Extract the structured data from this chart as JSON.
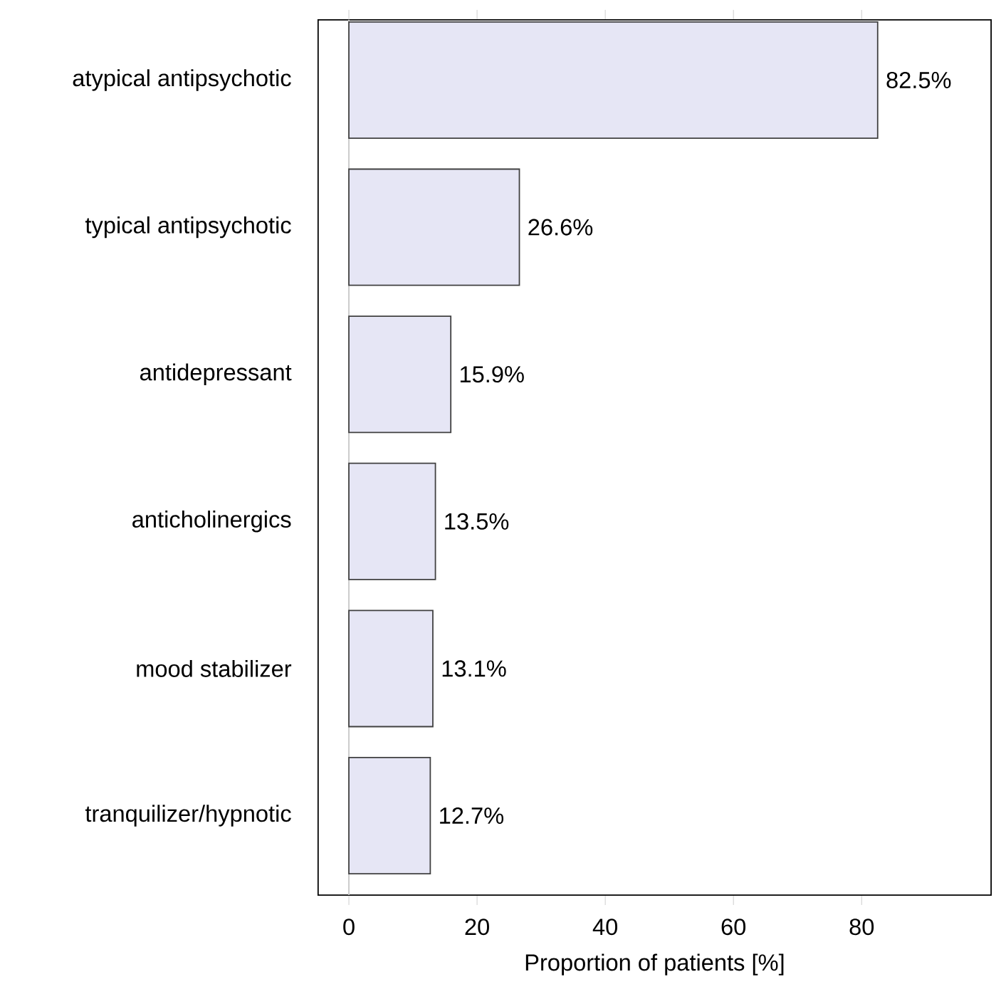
{
  "chart_data": {
    "type": "bar",
    "orientation": "horizontal",
    "xlabel": "Proportion of patients [%]",
    "categories": [
      "atypical antipsychotic",
      "typical antipsychotic",
      "antidepressant",
      "anticholinergics",
      "mood stabilizer",
      "tranquilizer/hypnotic"
    ],
    "values": [
      82.5,
      26.6,
      15.9,
      13.5,
      13.1,
      12.7
    ],
    "value_labels": [
      "82.5%",
      "26.6%",
      "15.9%",
      "13.5%",
      "13.1%",
      "12.7%"
    ],
    "color": "#e6e6f5",
    "xlim": [
      -4.8,
      100.2
    ],
    "xticks": [
      0,
      20,
      40,
      60,
      80
    ],
    "ref_lines": [
      {
        "axis": "x",
        "value": 0,
        "color": "#cccccc"
      }
    ],
    "grid": false
  }
}
